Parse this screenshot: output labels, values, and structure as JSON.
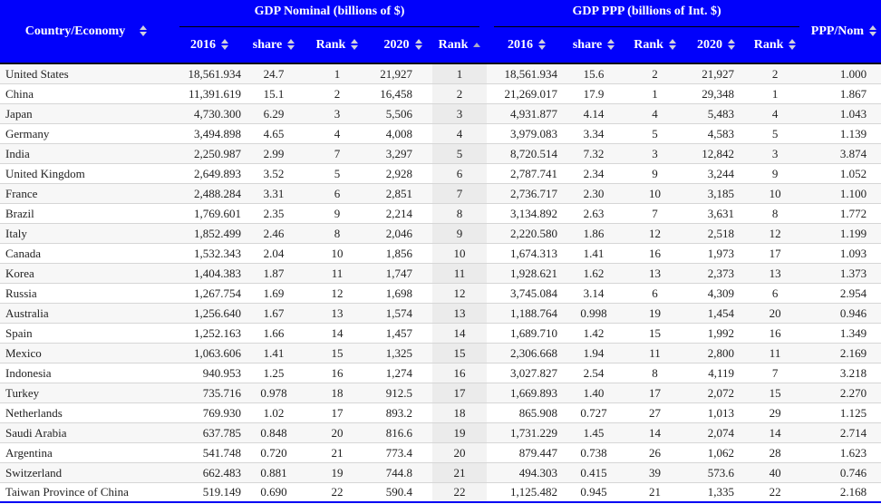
{
  "header": {
    "country": "Country/Economy",
    "nominal_group": "GDP Nominal (billions of $)",
    "ppp_group": "GDP PPP (billions of Int. $)",
    "ppp_nom": "PPP/Nom",
    "nominal_subcols": [
      "2016",
      "share",
      "Rank",
      "2020",
      "Rank"
    ],
    "ppp_subcols": [
      "2016",
      "share",
      "Rank",
      "2020",
      "Rank"
    ],
    "sorted": {
      "column": "GDP Nominal Rank 2020",
      "direction": "ascending"
    }
  },
  "colors": {
    "header_bg": "#0101fb",
    "header_text": "#ffffff",
    "group_underline": "#000000",
    "header_bottom_border": "#111111",
    "table_bottom_border": "#0101f4",
    "row_stripe": "#f7f7f7",
    "sorted_col_odd": "#ebebeb",
    "sorted_col_even": "#f3f3f3",
    "row_border": "#d6d6d6",
    "body_text": "#222222",
    "sort_icon_inactive": "#cfcfdf",
    "sort_icon_active": "#a9a9c9"
  },
  "chart_data": {
    "type": "table",
    "columns": [
      "Country/Economy",
      "Nominal 2016",
      "Nominal share",
      "Nominal Rank",
      "Nominal 2020",
      "Nominal Rank 2020",
      "PPP 2016",
      "PPP share",
      "PPP Rank",
      "PPP 2020",
      "PPP Rank 2020",
      "PPP/Nom"
    ],
    "rows": [
      [
        "United States",
        "18,561.934",
        "24.7",
        "1",
        "21,927",
        "1",
        "18,561.934",
        "15.6",
        "2",
        "21,927",
        "2",
        "1.000"
      ],
      [
        "China",
        "11,391.619",
        "15.1",
        "2",
        "16,458",
        "2",
        "21,269.017",
        "17.9",
        "1",
        "29,348",
        "1",
        "1.867"
      ],
      [
        "Japan",
        "4,730.300",
        "6.29",
        "3",
        "5,506",
        "3",
        "4,931.877",
        "4.14",
        "4",
        "5,483",
        "4",
        "1.043"
      ],
      [
        "Germany",
        "3,494.898",
        "4.65",
        "4",
        "4,008",
        "4",
        "3,979.083",
        "3.34",
        "5",
        "4,583",
        "5",
        "1.139"
      ],
      [
        "India",
        "2,250.987",
        "2.99",
        "7",
        "3,297",
        "5",
        "8,720.514",
        "7.32",
        "3",
        "12,842",
        "3",
        "3.874"
      ],
      [
        "United Kingdom",
        "2,649.893",
        "3.52",
        "5",
        "2,928",
        "6",
        "2,787.741",
        "2.34",
        "9",
        "3,244",
        "9",
        "1.052"
      ],
      [
        "France",
        "2,488.284",
        "3.31",
        "6",
        "2,851",
        "7",
        "2,736.717",
        "2.30",
        "10",
        "3,185",
        "10",
        "1.100"
      ],
      [
        "Brazil",
        "1,769.601",
        "2.35",
        "9",
        "2,214",
        "8",
        "3,134.892",
        "2.63",
        "7",
        "3,631",
        "8",
        "1.772"
      ],
      [
        "Italy",
        "1,852.499",
        "2.46",
        "8",
        "2,046",
        "9",
        "2,220.580",
        "1.86",
        "12",
        "2,518",
        "12",
        "1.199"
      ],
      [
        "Canada",
        "1,532.343",
        "2.04",
        "10",
        "1,856",
        "10",
        "1,674.313",
        "1.41",
        "16",
        "1,973",
        "17",
        "1.093"
      ],
      [
        "Korea",
        "1,404.383",
        "1.87",
        "11",
        "1,747",
        "11",
        "1,928.621",
        "1.62",
        "13",
        "2,373",
        "13",
        "1.373"
      ],
      [
        "Russia",
        "1,267.754",
        "1.69",
        "12",
        "1,698",
        "12",
        "3,745.084",
        "3.14",
        "6",
        "4,309",
        "6",
        "2.954"
      ],
      [
        "Australia",
        "1,256.640",
        "1.67",
        "13",
        "1,574",
        "13",
        "1,188.764",
        "0.998",
        "19",
        "1,454",
        "20",
        "0.946"
      ],
      [
        "Spain",
        "1,252.163",
        "1.66",
        "14",
        "1,457",
        "14",
        "1,689.710",
        "1.42",
        "15",
        "1,992",
        "16",
        "1.349"
      ],
      [
        "Mexico",
        "1,063.606",
        "1.41",
        "15",
        "1,325",
        "15",
        "2,306.668",
        "1.94",
        "11",
        "2,800",
        "11",
        "2.169"
      ],
      [
        "Indonesia",
        "940.953",
        "1.25",
        "16",
        "1,274",
        "16",
        "3,027.827",
        "2.54",
        "8",
        "4,119",
        "7",
        "3.218"
      ],
      [
        "Turkey",
        "735.716",
        "0.978",
        "18",
        "912.5",
        "17",
        "1,669.893",
        "1.40",
        "17",
        "2,072",
        "15",
        "2.270"
      ],
      [
        "Netherlands",
        "769.930",
        "1.02",
        "17",
        "893.2",
        "18",
        "865.908",
        "0.727",
        "27",
        "1,013",
        "29",
        "1.125"
      ],
      [
        "Saudi Arabia",
        "637.785",
        "0.848",
        "20",
        "816.6",
        "19",
        "1,731.229",
        "1.45",
        "14",
        "2,074",
        "14",
        "2.714"
      ],
      [
        "Argentina",
        "541.748",
        "0.720",
        "21",
        "773.4",
        "20",
        "879.447",
        "0.738",
        "26",
        "1,062",
        "28",
        "1.623"
      ],
      [
        "Switzerland",
        "662.483",
        "0.881",
        "19",
        "744.8",
        "21",
        "494.303",
        "0.415",
        "39",
        "573.6",
        "40",
        "0.746"
      ],
      [
        "Taiwan Province of China",
        "519.149",
        "0.690",
        "22",
        "590.4",
        "22",
        "1,125.482",
        "0.945",
        "21",
        "1,335",
        "22",
        "2.168"
      ]
    ]
  }
}
